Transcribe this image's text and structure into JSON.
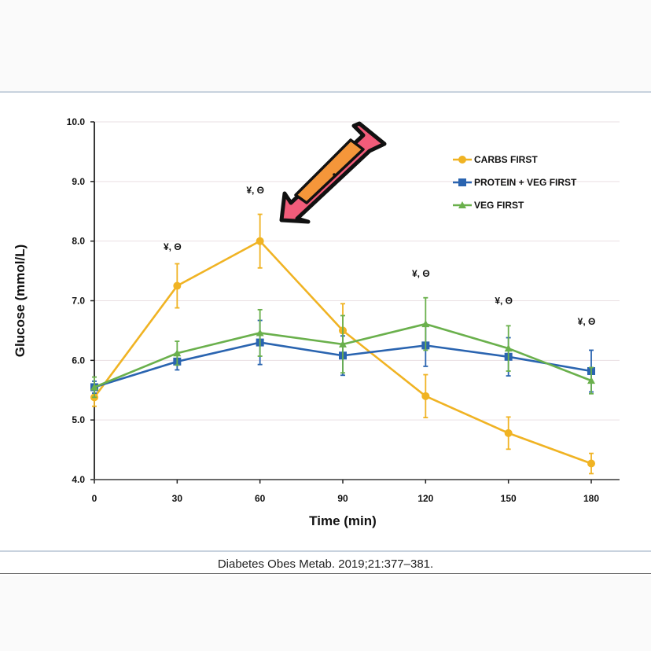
{
  "citation": "Diabetes Obes Metab. 2019;21:377–381.",
  "overlay": {
    "icon": "pink-arrow-pointing-down-left",
    "points_to": "CARBS FIRST peak at 60 min"
  },
  "chart_data": {
    "type": "line",
    "title": "",
    "xlabel": "Time (min)",
    "ylabel": "Glucose (mmol/L)",
    "x": [
      0,
      30,
      60,
      90,
      120,
      150,
      180
    ],
    "xticks": [
      "0",
      "30",
      "60",
      "90",
      "120",
      "150",
      "180"
    ],
    "yticks": [
      "4.0",
      "5.0",
      "6.0",
      "7.0",
      "8.0",
      "9.0",
      "10.0"
    ],
    "xlim": [
      0,
      180
    ],
    "ylim": [
      4.0,
      10.0
    ],
    "grid": true,
    "legend_position": "top-right",
    "series": [
      {
        "name": "CARBS FIRST",
        "color": "#f0b323",
        "marker": "circle",
        "values": [
          5.38,
          7.25,
          8.0,
          6.5,
          5.4,
          4.78,
          4.27
        ],
        "errors": [
          0.15,
          0.37,
          0.45,
          0.45,
          0.36,
          0.27,
          0.17
        ]
      },
      {
        "name": "PROTEIN + VEG FIRST",
        "color": "#2a64b0",
        "marker": "square",
        "values": [
          5.55,
          5.98,
          6.3,
          6.08,
          6.25,
          6.06,
          5.82
        ],
        "errors": [
          0.1,
          0.14,
          0.37,
          0.33,
          0.35,
          0.32,
          0.35
        ]
      },
      {
        "name": "VEG FIRST",
        "color": "#6ab04c",
        "marker": "triangle",
        "values": [
          5.55,
          6.12,
          6.46,
          6.27,
          6.61,
          6.2,
          5.66
        ],
        "errors": [
          0.17,
          0.2,
          0.39,
          0.48,
          0.44,
          0.38,
          0.22
        ]
      }
    ],
    "annotations": [
      {
        "x": 30,
        "y": 7.85,
        "text": "¥, Θ"
      },
      {
        "x": 60,
        "y": 8.8,
        "text": "¥, Θ"
      },
      {
        "x": 120,
        "y": 7.4,
        "text": "¥, Θ"
      },
      {
        "x": 150,
        "y": 6.95,
        "text": "¥, Θ"
      },
      {
        "x": 180,
        "y": 6.6,
        "text": "¥, Θ"
      }
    ]
  }
}
